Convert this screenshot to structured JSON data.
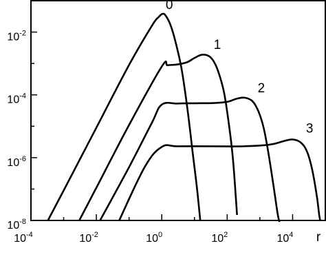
{
  "chart_data": {
    "type": "line",
    "title": "",
    "xlabel": "r",
    "ylabel": "",
    "xscale": "log",
    "yscale": "log",
    "xlim": [
      0.0001,
      100000
    ],
    "ylim": [
      1e-08,
      0.1
    ],
    "x_ticks": [
      {
        "value": 0.0001,
        "base": "10",
        "exp": "-4"
      },
      {
        "value": 0.01,
        "base": "10",
        "exp": "-2"
      },
      {
        "value": 1,
        "base": "10",
        "exp": "0"
      },
      {
        "value": 100,
        "base": "10",
        "exp": "2"
      },
      {
        "value": 10000,
        "base": "10",
        "exp": "4"
      }
    ],
    "y_ticks": [
      {
        "value": 1e-08,
        "base": "10",
        "exp": "-8"
      },
      {
        "value": 1e-06,
        "base": "10",
        "exp": "-6"
      },
      {
        "value": 0.0001,
        "base": "10",
        "exp": "-4"
      },
      {
        "value": 0.01,
        "base": "10",
        "exp": "-2"
      }
    ],
    "grid": false,
    "legend": "none",
    "series": [
      {
        "name": "0",
        "points": [
          [
            0.00033,
            1e-08
          ],
          [
            0.001,
            9e-08
          ],
          [
            0.01,
            9e-06
          ],
          [
            0.1,
            0.0009
          ],
          [
            0.5,
            0.016
          ],
          [
            0.8,
            0.03
          ],
          [
            1.05,
            0.038
          ],
          [
            1.3,
            0.034
          ],
          [
            1.8,
            0.018
          ],
          [
            2.5,
            0.006
          ],
          [
            4,
            0.0007
          ],
          [
            6,
            4e-05
          ],
          [
            9,
            1.2e-06
          ],
          [
            12,
            1e-07
          ],
          [
            15,
            1e-08
          ]
        ]
      },
      {
        "name": "1",
        "points": [
          [
            0.003,
            1e-08
          ],
          [
            0.01,
            1.1e-07
          ],
          [
            0.1,
            1.1e-05
          ],
          [
            1,
            0.0008
          ],
          [
            1.5,
            0.00088
          ],
          [
            3,
            0.00093
          ],
          [
            6,
            0.0011
          ],
          [
            10,
            0.0015
          ],
          [
            17,
            0.0019
          ],
          [
            28,
            0.0017
          ],
          [
            40,
            0.0011
          ],
          [
            55,
            0.0005
          ],
          [
            80,
            0.00012
          ],
          [
            110,
            1.4e-05
          ],
          [
            150,
            9e-07
          ],
          [
            200,
            1.5e-08
          ]
        ]
      },
      {
        "name": "2",
        "points": [
          [
            0.013,
            1e-08
          ],
          [
            0.1,
            5e-07
          ],
          [
            0.5,
            1.3e-05
          ],
          [
            1,
            4.9e-05
          ],
          [
            3,
            5.3e-05
          ],
          [
            10,
            5.4e-05
          ],
          [
            40,
            5.5e-05
          ],
          [
            100,
            6e-05
          ],
          [
            200,
            7.6e-05
          ],
          [
            350,
            8.1e-05
          ],
          [
            600,
            6.2e-05
          ],
          [
            900,
            3e-05
          ],
          [
            1300,
            9e-06
          ],
          [
            1800,
            1.5e-06
          ],
          [
            2500,
            1.7e-07
          ],
          [
            3500,
            1.6e-08
          ],
          [
            4000,
            9e-09
          ]
        ]
      },
      {
        "name": "3",
        "points": [
          [
            0.05,
            1e-08
          ],
          [
            0.3,
            5e-07
          ],
          [
            1,
            2.2e-06
          ],
          [
            3,
            2.3e-06
          ],
          [
            30,
            2.3e-06
          ],
          [
            300,
            2.3e-06
          ],
          [
            2000,
            2.6e-06
          ],
          [
            5000,
            3.3e-06
          ],
          [
            10000,
            3.8e-06
          ],
          [
            18000,
            3e-06
          ],
          [
            28000,
            1.5e-06
          ],
          [
            40000,
            4e-07
          ],
          [
            55000,
            6e-08
          ],
          [
            65000,
            1.5e-08
          ],
          [
            70000,
            1e-08
          ]
        ]
      }
    ],
    "annotations": [
      {
        "text": "0",
        "x": 1.7,
        "y": 0.055
      },
      {
        "text": "1",
        "x": 50,
        "y": 0.0029
      },
      {
        "text": "2",
        "x": 1100,
        "y": 0.00012
      },
      {
        "text": "3",
        "x": 33000,
        "y": 6.2e-06
      }
    ]
  }
}
